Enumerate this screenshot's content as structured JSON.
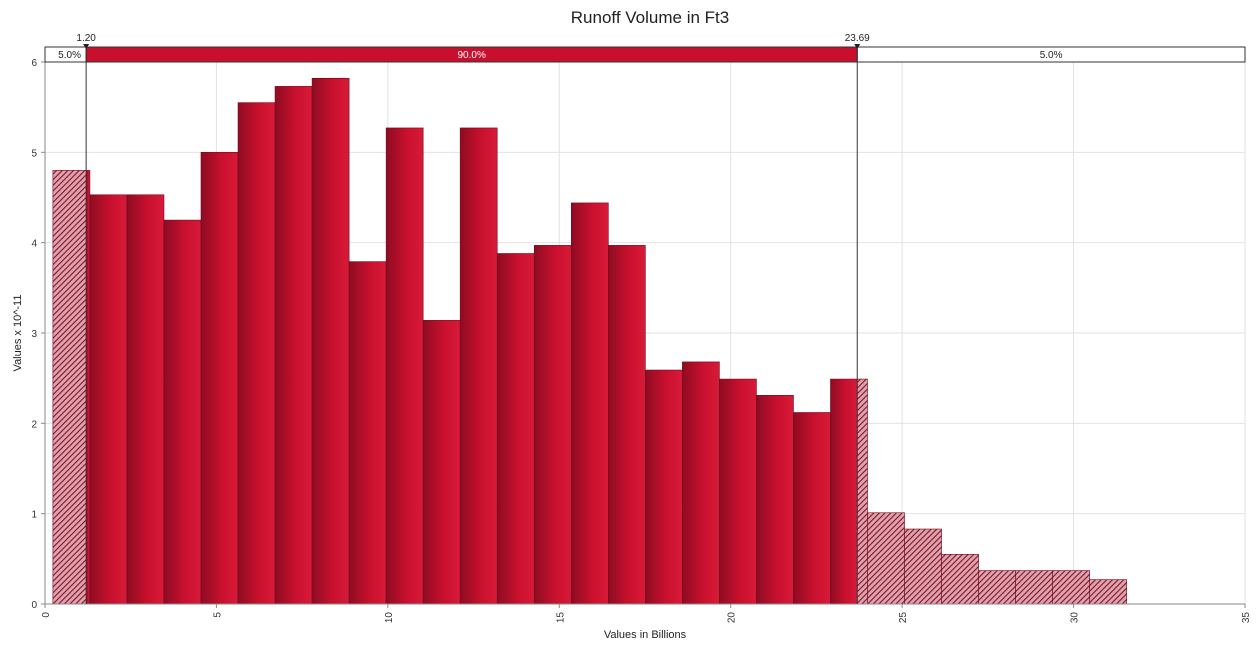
{
  "chart_data": {
    "type": "bar",
    "title": "Runoff Volume in Ft3",
    "xlabel": "Values in Billions",
    "ylabel": "Values x 10^-11",
    "xlim": [
      0,
      35
    ],
    "ylim": [
      0,
      6
    ],
    "x_ticks": [
      "0",
      "5",
      "10",
      "15",
      "20",
      "25",
      "30",
      "35"
    ],
    "y_ticks": [
      "0",
      "1",
      "2",
      "3",
      "4",
      "5",
      "6"
    ],
    "grid": true,
    "colors": {
      "bar": "#c8102e",
      "bar_dark": "#8e0c22",
      "tail": "#b0304a"
    },
    "bin_edges": [
      0.23,
      1.31,
      2.39,
      3.47,
      4.55,
      5.63,
      6.71,
      7.79,
      8.87,
      9.95,
      11.03,
      12.11,
      13.19,
      14.27,
      15.35,
      16.43,
      17.51,
      18.59,
      19.67,
      20.75,
      21.83,
      22.91,
      23.99,
      25.07,
      26.15,
      27.23,
      28.31,
      29.39,
      30.47,
      31.55
    ],
    "values": [
      4.8,
      4.53,
      4.53,
      4.25,
      5.0,
      5.55,
      5.73,
      5.82,
      3.79,
      5.27,
      3.14,
      5.27,
      3.88,
      3.97,
      4.44,
      3.97,
      2.59,
      2.68,
      2.49,
      2.31,
      2.12,
      2.49,
      1.01,
      0.83,
      0.55,
      0.37,
      0.37,
      0.37,
      0.27
    ],
    "delimiters": {
      "left_value": "1.20",
      "right_value": "23.69",
      "left_x": 1.2,
      "right_x": 23.69,
      "left_pct": "5.0%",
      "middle_pct": "90.0%",
      "right_pct": "5.0%"
    }
  }
}
